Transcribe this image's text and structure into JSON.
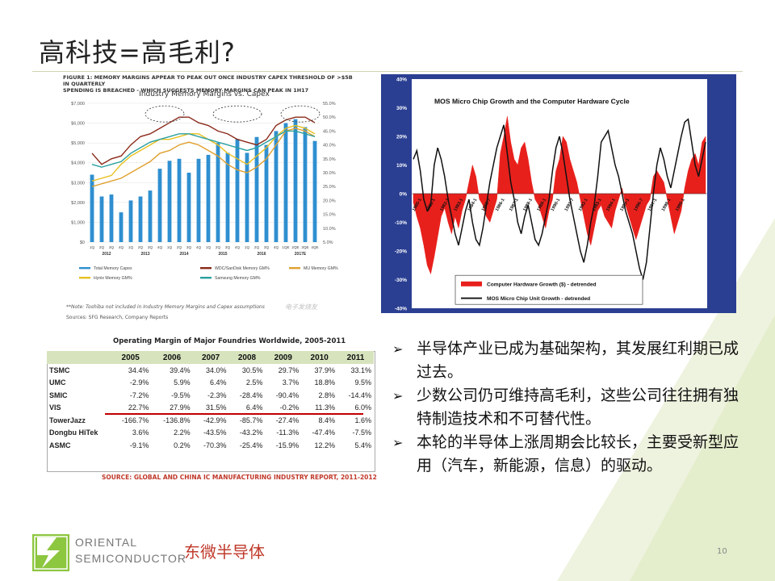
{
  "slide": {
    "title": "高科技=高毛利?",
    "page_number": "10"
  },
  "figure1": {
    "caption_line1": "FIGURE 1: MEMORY MARGINS APPEAR TO PEAK OUT ONCE INDUSTRY CAPEX THRESHOLD OF >$5B IN QUARTERLY",
    "caption_line2": "SPENDING IS BREACHED - WHICH SUGGESTS MEMORY MARGINS CAN PEAK IN 1H17",
    "note": "**Note: Toshiba not included in Industry Memory Margins and Capex assumptions",
    "source": "Sources: SFG Research, Company Reports",
    "watermark": "电子发烧友",
    "chart_data": {
      "type": "bar",
      "title": "Industry Memory Margins vs. Capex",
      "categories": [
        "1Q",
        "2Q",
        "3Q",
        "4Q",
        "1Q",
        "2Q",
        "3Q",
        "4Q",
        "1Q",
        "2Q",
        "3Q",
        "4Q",
        "1Q",
        "2Q",
        "3Q",
        "4Q",
        "1Q",
        "2Q",
        "3Q",
        "4Q",
        "1QE",
        "2QE",
        "3QE",
        "4QE"
      ],
      "year_labels": [
        "2012",
        "2013",
        "2014",
        "2015",
        "2016",
        "2017E"
      ],
      "left_axis_ticks": [
        "$7,000",
        "$6,000",
        "$5,000",
        "$4,000",
        "$3,000",
        "$2,000",
        "$1,000",
        "$0"
      ],
      "right_axis_ticks": [
        "55.0%",
        "50.0%",
        "45.0%",
        "40.0%",
        "35.0%",
        "30.0%",
        "25.0%",
        "20.0%",
        "15.0%",
        "10.0%",
        "5.0%"
      ],
      "ylim_left": [
        0,
        7000
      ],
      "ylim_right": [
        5,
        55
      ],
      "series": [
        {
          "name": "Total Memory Capex",
          "color": "#2f8fd0",
          "kind": "bar",
          "values": [
            3400,
            2300,
            2400,
            1500,
            2100,
            2300,
            2600,
            3700,
            4100,
            4200,
            3500,
            4200,
            4400,
            5000,
            4500,
            5200,
            4500,
            5300,
            4900,
            5600,
            6000,
            6200,
            5800,
            5100
          ]
        },
        {
          "name": "WDC/SanDisk Memory GM%",
          "color": "#8b2a1a",
          "kind": "line",
          "values": [
            37,
            33,
            35,
            36,
            40,
            43,
            44,
            46,
            48,
            50,
            50,
            48,
            47,
            45,
            44,
            42,
            41,
            40,
            42,
            47,
            49,
            50,
            50,
            48
          ]
        },
        {
          "name": "MU Memory GM%",
          "color": "#e0a030",
          "kind": "line",
          "values": [
            25,
            26,
            27,
            28,
            30,
            32,
            34,
            37,
            38,
            40,
            41,
            40,
            38,
            36,
            33,
            31,
            30,
            32,
            35,
            40,
            45,
            46,
            45,
            43
          ]
        },
        {
          "name": "Hynix Memory GM%",
          "color": "#e8c020",
          "kind": "line",
          "values": [
            27,
            28,
            29,
            33,
            36,
            38,
            40,
            42,
            42,
            43,
            44,
            44,
            42,
            40,
            37,
            35,
            33,
            36,
            39,
            43,
            46,
            47,
            46,
            44
          ]
        },
        {
          "name": "Samsung Memory GM%",
          "color": "#2aa0a0",
          "kind": "line",
          "values": [
            33,
            32,
            33,
            34,
            37,
            39,
            41,
            42,
            43,
            44,
            44,
            43,
            42,
            41,
            40,
            39,
            38,
            39,
            41,
            43,
            45,
            45,
            44,
            43
          ]
        }
      ]
    }
  },
  "figure2": {
    "chart_data": {
      "type": "area",
      "title": "MOS Micro Chip Growth and the Computer Hardware Cycle",
      "y_ticks": [
        "40%",
        "30%",
        "20%",
        "10%",
        "0%",
        "-10%",
        "-20%",
        "-30%",
        "-40%"
      ],
      "ylim": [
        -40,
        40
      ],
      "x_tick_labels": [
        "1980-1",
        "1981-1",
        "1982-1",
        "1983-1",
        "1984-1",
        "1985-7",
        "1986-1",
        "1987-1",
        "1988-1",
        "1989-1",
        "1990-1",
        "1991-7",
        "1992-1",
        "1993-1",
        "1994-1",
        "1995-1",
        "1996-7",
        "1997-1",
        "1998-1",
        "1999-1"
      ],
      "series": [
        {
          "name": "Computer Hardware Growth ($) - detrended",
          "color": "#e8201c",
          "kind": "area",
          "values": [
            -3,
            -8,
            -12,
            -18,
            -25,
            -28,
            -22,
            -15,
            -8,
            -5,
            -10,
            -14,
            -8,
            -12,
            -6,
            -2,
            4,
            10,
            6,
            -2,
            -4,
            -8,
            -10,
            -6,
            -2,
            14,
            20,
            27,
            18,
            12,
            10,
            16,
            18,
            12,
            4,
            -2,
            -4,
            -8,
            -12,
            -6,
            -2,
            8,
            12,
            20,
            18,
            12,
            8,
            4,
            -2,
            -8,
            -14,
            -18,
            -12,
            -6,
            -4,
            -8,
            -10,
            -12,
            -6,
            -2,
            2,
            -4,
            -8,
            -12,
            -16,
            -12,
            -8,
            -4,
            -2,
            6,
            8,
            6,
            4,
            -2,
            -8,
            -14,
            -10,
            -6,
            2,
            8,
            12,
            14,
            10,
            18,
            20
          ]
        },
        {
          "name": "MOS Micro Chip Unit Growth - detrended",
          "color": "#111111",
          "kind": "line",
          "values": [
            12,
            15,
            8,
            -2,
            -6,
            -4,
            10,
            16,
            12,
            6,
            -2,
            -8,
            -14,
            -18,
            -12,
            -6,
            -2,
            -10,
            -16,
            -18,
            -12,
            -4,
            4,
            10,
            16,
            20,
            24,
            14,
            4,
            -2,
            -10,
            -14,
            -8,
            -4,
            -10,
            -16,
            -18,
            -14,
            -8,
            -2,
            8,
            16,
            20,
            14,
            6,
            -2,
            -8,
            -14,
            -20,
            -24,
            -18,
            -10,
            -4,
            6,
            18,
            20,
            22,
            16,
            10,
            6,
            0,
            -6,
            -10,
            -14,
            -20,
            -26,
            -30,
            -24,
            -12,
            0,
            10,
            16,
            12,
            6,
            2,
            8,
            14,
            20,
            25,
            26,
            18,
            10,
            6,
            12,
            18
          ]
        }
      ]
    }
  },
  "table": {
    "title": "Operating Margin of Major Foundries Worldwide, 2005-2011",
    "years": [
      "2005",
      "2006",
      "2007",
      "2008",
      "2009",
      "2010",
      "2011"
    ],
    "rows": [
      {
        "company": "TSMC",
        "values": [
          "34.4%",
          "39.4%",
          "34.0%",
          "30.5%",
          "29.7%",
          "37.9%",
          "33.1%"
        ]
      },
      {
        "company": "UMC",
        "values": [
          "-2.9%",
          "5.9%",
          "6.4%",
          "2.5%",
          "3.7%",
          "18.8%",
          "9.5%"
        ]
      },
      {
        "company": "SMIC",
        "values": [
          "-7.2%",
          "-9.5%",
          "-2.3%",
          "-28.4%",
          "-90.4%",
          "2.8%",
          "-14.4%"
        ]
      },
      {
        "company": "VIS",
        "values": [
          "22.7%",
          "27.9%",
          "31.5%",
          "6.4%",
          "-0.2%",
          "11.3%",
          "6.0%"
        ]
      },
      {
        "company": "TowerJazz",
        "values": [
          "-166.7%",
          "-136.8%",
          "-42.9%",
          "-85.7%",
          "-27.4%",
          "8.4%",
          "1.6%"
        ]
      },
      {
        "company": "Dongbu HiTek",
        "values": [
          "3.6%",
          "2.2%",
          "-43.5%",
          "-43.2%",
          "-11.3%",
          "-47.4%",
          "-7.5%"
        ]
      },
      {
        "company": "ASMC",
        "values": [
          "-9.1%",
          "0.2%",
          "-70.3%",
          "-25.4%",
          "-15.9%",
          "12.2%",
          "5.4%"
        ]
      }
    ],
    "source": "SOURCE: GLOBAL AND CHINA IC MANUFACTURING INDUSTRY REPORT, 2011-2012"
  },
  "bullets": [
    "半导体产业已成为基础架构，其发展红利期已成过去。",
    "少数公司仍可维持高毛利，这些公司往往拥有独特制造技术和不可替代性。",
    "本轮的半导体上涨周期会比较长，主要受新型应用（汽车，新能源，信息）的驱动。"
  ],
  "footer": {
    "logo_line1": "ORIENTAL",
    "logo_line2": "SEMICONDUCTOR",
    "company_cn": "东微半导体"
  },
  "colors": {
    "accent_green": "#8dc63f",
    "table_header_bg": "#d6e3bd",
    "fig2_bg": "#2a3f92",
    "red": "#c0392b"
  }
}
